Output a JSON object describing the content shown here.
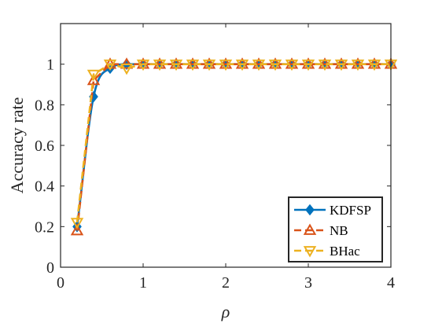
{
  "chart_data": {
    "type": "line",
    "xlabel": "ρ",
    "ylabel": "Accuracy rate",
    "xlim": [
      0,
      4
    ],
    "ylim": [
      0,
      1.2
    ],
    "x_ticks": [
      "0",
      "1",
      "2",
      "3",
      "4"
    ],
    "y_ticks": [
      "0",
      "0.2",
      "0.4",
      "0.6",
      "0.8",
      "1"
    ],
    "x_tick_values": [
      0,
      1,
      2,
      3,
      4
    ],
    "y_tick_values": [
      0,
      0.2,
      0.4,
      0.6,
      0.8,
      1
    ],
    "grid": false,
    "legend_position": "bottom-right",
    "x": [
      0.2,
      0.4,
      0.6,
      0.8,
      1.0,
      1.2,
      1.4,
      1.6,
      1.8,
      2.0,
      2.2,
      2.4,
      2.6,
      2.8,
      3.0,
      3.2,
      3.4,
      3.6,
      3.8,
      4.0
    ],
    "series": [
      {
        "name": "KDFSP",
        "color": "#0072BD",
        "marker": "diamond",
        "line_style": "solid",
        "smooth": true,
        "values": [
          0.2,
          0.84,
          0.98,
          1,
          1,
          1,
          1,
          1,
          1,
          1,
          1,
          1,
          1,
          1,
          1,
          1,
          1,
          1,
          1,
          1
        ]
      },
      {
        "name": "NB",
        "color": "#D95319",
        "marker": "triangle-up",
        "line_style": "dashed",
        "smooth": false,
        "values": [
          0.18,
          0.92,
          1,
          1,
          1,
          1,
          1,
          1,
          1,
          1,
          1,
          1,
          1,
          1,
          1,
          1,
          1,
          1,
          1,
          1
        ]
      },
      {
        "name": "BHac",
        "color": "#EDB120",
        "marker": "triangle-down",
        "line_style": "dashed",
        "smooth": false,
        "values": [
          0.22,
          0.95,
          1,
          0.98,
          1,
          1,
          1,
          1,
          1,
          1,
          1,
          1,
          1,
          1,
          1,
          1,
          1,
          1,
          1,
          1
        ]
      }
    ]
  }
}
